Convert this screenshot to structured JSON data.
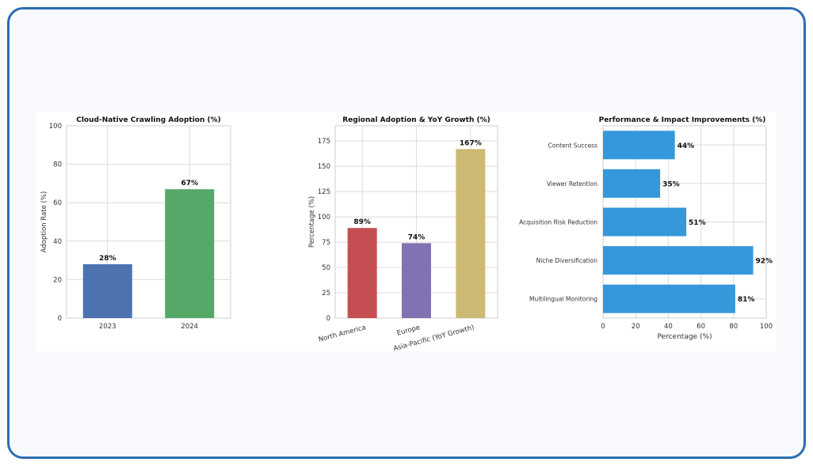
{
  "chart_data": [
    {
      "type": "bar",
      "title": "Cloud-Native Crawling Adoption (%)",
      "xlabel": "",
      "ylabel": "Adoption Rate (%)",
      "categories": [
        "2023",
        "2024"
      ],
      "values": [
        28,
        67
      ],
      "labels": [
        "28%",
        "67%"
      ],
      "colors": [
        "#4c72b0",
        "#55a868"
      ],
      "ylim": [
        0,
        100
      ],
      "yticks": [
        "0",
        "20",
        "40",
        "60",
        "80",
        "100"
      ],
      "grid": true
    },
    {
      "type": "bar",
      "title": "Regional Adoption & YoY Growth (%)",
      "xlabel": "",
      "ylabel": "Percentage (%)",
      "categories": [
        "North America",
        "Europe",
        "Asia-Pacific (YoY Growth)"
      ],
      "values": [
        89,
        74,
        167
      ],
      "labels": [
        "89%",
        "74%",
        "167%"
      ],
      "colors": [
        "#c44e52",
        "#8172b2",
        "#ccb974"
      ],
      "ylim": [
        0,
        190
      ],
      "yticks": [
        "0",
        "25",
        "50",
        "75",
        "100",
        "125",
        "150",
        "175"
      ],
      "grid": true
    },
    {
      "type": "bar",
      "orientation": "horizontal",
      "title": "Performance & Impact Improvements (%)",
      "xlabel": "Percentage (%)",
      "ylabel": "",
      "categories": [
        "Content Success",
        "Viewer Retention",
        "Acquisition Risk Reduction",
        "Niche Diversification",
        "Multilingual Monitoring"
      ],
      "values": [
        44,
        35,
        51,
        92,
        81
      ],
      "labels": [
        "44%",
        "35%",
        "51%",
        "92%",
        "81%"
      ],
      "colors": [
        "#3498db"
      ],
      "xlim": [
        0,
        100
      ],
      "xticks": [
        "0",
        "20",
        "40",
        "60",
        "80",
        "100"
      ],
      "grid": true
    }
  ]
}
